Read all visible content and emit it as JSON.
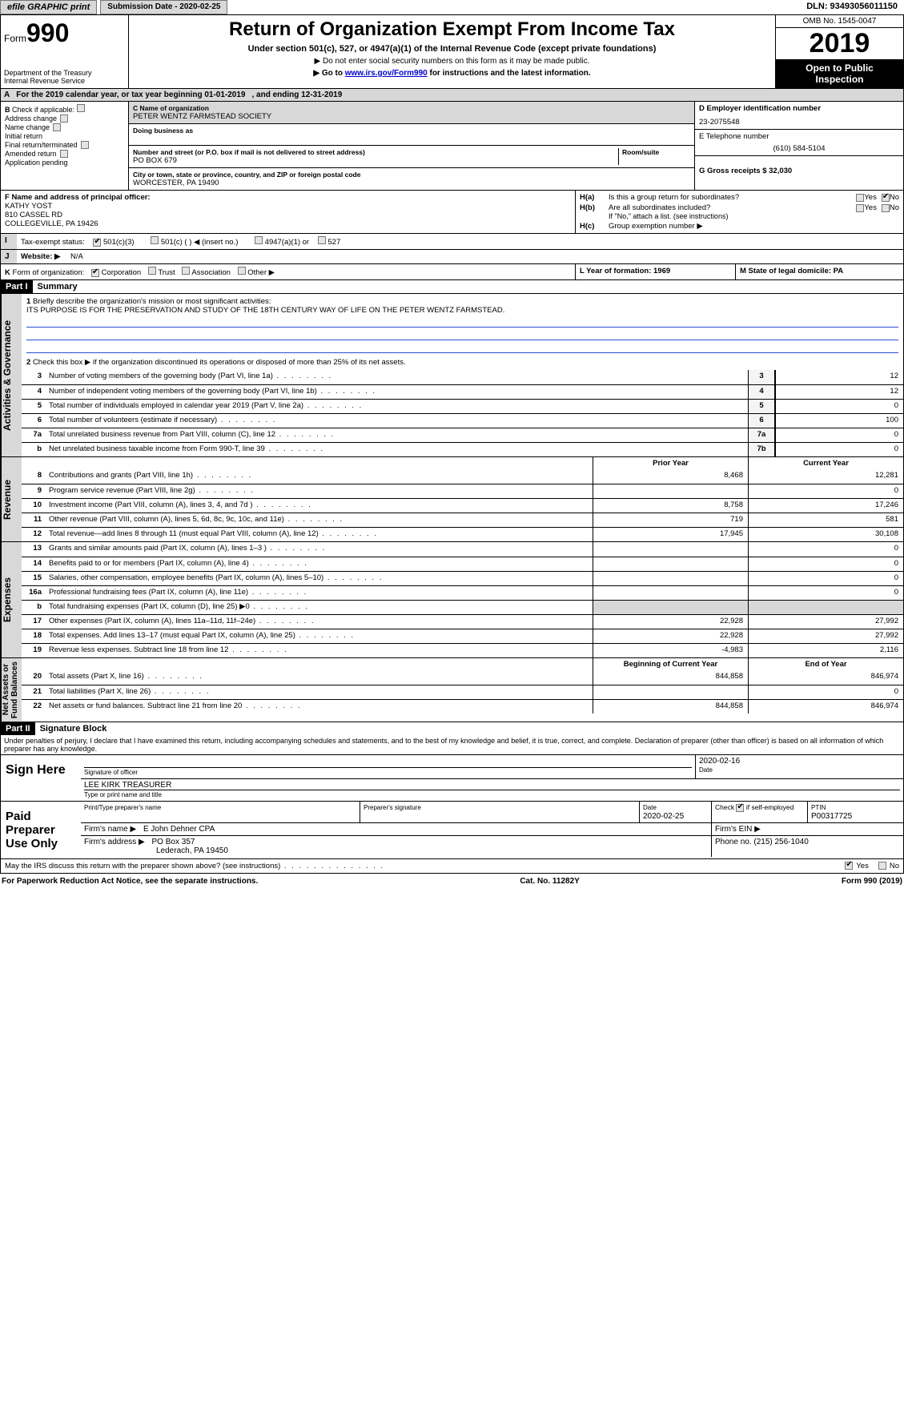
{
  "topbar": {
    "efile": "efile GRAPHIC print",
    "submission": "Submission Date - 2020-02-25",
    "dln": "DLN: 93493056011150"
  },
  "header": {
    "form_label": "Form",
    "form_number": "990",
    "title": "Return of Organization Exempt From Income Tax",
    "subtitle": "Under section 501(c), 527, or 4947(a)(1) of the Internal Revenue Code (except private foundations)",
    "note1": "▶ Do not enter social security numbers on this form as it may be made public.",
    "note2_pre": "▶ Go to ",
    "note2_link": "www.irs.gov/Form990",
    "note2_post": " for instructions and the latest information.",
    "dept": "Department of the Treasury\nInternal Revenue Service",
    "omb": "OMB No. 1545-0047",
    "year": "2019",
    "open": "Open to Public\nInspection"
  },
  "line_a": {
    "label": "A",
    "text": "For the 2019 calendar year, or tax year beginning 01-01-2019",
    "ending": ", and ending 12-31-2019"
  },
  "col_b": {
    "label": "B",
    "check": "Check if applicable:",
    "opts": [
      "Address change",
      "Name change",
      "Initial return",
      "Final return/terminated",
      "Amended return",
      "Application pending"
    ]
  },
  "col_c": {
    "name_lbl": "C Name of organization",
    "name": "PETER WENTZ FARMSTEAD SOCIETY",
    "dba_lbl": "Doing business as",
    "addr_lbl": "Number and street (or P.O. box if mail is not delivered to street address)",
    "room_lbl": "Room/suite",
    "addr": "PO BOX 679",
    "city_lbl": "City or town, state or province, country, and ZIP or foreign postal code",
    "city": "WORCESTER, PA  19490"
  },
  "col_d": {
    "ein_lbl": "D Employer identification number",
    "ein": "23-2075548",
    "tel_lbl": "E Telephone number",
    "tel": "(610) 584-5104",
    "gross_lbl": "G Gross receipts $ 32,030"
  },
  "row_f": {
    "lbl": "F  Name and address of principal officer:",
    "name": "KATHY YOST",
    "street": "810 CASSEL RD",
    "city": "COLLEGEVILLE, PA  19426",
    "ha": "H(a)",
    "ha_text": "Is this a group return for subordinates?",
    "hb": "H(b)",
    "hb_text": "Are all subordinates included?",
    "hb_note": "If \"No,\" attach a list. (see instructions)",
    "hc": "H(c)",
    "hc_text": "Group exemption number ▶",
    "yes": "Yes",
    "no": "No"
  },
  "row_i": {
    "lbl": "I",
    "text": "Tax-exempt status:",
    "opts": [
      "501(c)(3)",
      "501(c) (  ) ◀ (insert no.)",
      "4947(a)(1) or",
      "527"
    ]
  },
  "row_j": {
    "lbl": "J",
    "text": "Website: ▶",
    "val": "N/A"
  },
  "row_k": {
    "lbl": "K",
    "text": "Form of organization:",
    "opts": [
      "Corporation",
      "Trust",
      "Association",
      "Other ▶"
    ],
    "l_lbl": "L Year of formation: 1969",
    "m_lbl": "M State of legal domicile: PA"
  },
  "part1": {
    "tag": "Part I",
    "title": "Summary"
  },
  "vtabs": {
    "gov": "Activities & Governance",
    "rev": "Revenue",
    "exp": "Expenses",
    "net": "Net Assets or\nFund Balances"
  },
  "summary": {
    "l1_lbl": "1",
    "l1": "Briefly describe the organization's mission or most significant activities:",
    "l1_text": "ITS PURPOSE IS FOR THE PRESERVATION AND STUDY OF THE 18TH CENTURY WAY OF LIFE ON THE PETER WENTZ FARMSTEAD.",
    "l2_lbl": "2",
    "l2": "Check this box ▶  if the organization discontinued its operations or disposed of more than 25% of its net assets.",
    "rows": [
      {
        "n": "3",
        "d": "Number of voting members of the governing body (Part VI, line 1a)",
        "b": "3",
        "v": "12"
      },
      {
        "n": "4",
        "d": "Number of independent voting members of the governing body (Part VI, line 1b)",
        "b": "4",
        "v": "12"
      },
      {
        "n": "5",
        "d": "Total number of individuals employed in calendar year 2019 (Part V, line 2a)",
        "b": "5",
        "v": "0"
      },
      {
        "n": "6",
        "d": "Total number of volunteers (estimate if necessary)",
        "b": "6",
        "v": "100"
      },
      {
        "n": "7a",
        "d": "Total unrelated business revenue from Part VIII, column (C), line 12",
        "b": "7a",
        "v": "0"
      },
      {
        "n": "b",
        "d": "Net unrelated business taxable income from Form 990-T, line 39",
        "b": "7b",
        "v": "0"
      }
    ],
    "col_prior": "Prior Year",
    "col_current": "Current Year",
    "rev_rows": [
      {
        "n": "8",
        "d": "Contributions and grants (Part VIII, line 1h)",
        "p": "8,468",
        "c": "12,281"
      },
      {
        "n": "9",
        "d": "Program service revenue (Part VIII, line 2g)",
        "p": "",
        "c": "0"
      },
      {
        "n": "10",
        "d": "Investment income (Part VIII, column (A), lines 3, 4, and 7d )",
        "p": "8,758",
        "c": "17,246"
      },
      {
        "n": "11",
        "d": "Other revenue (Part VIII, column (A), lines 5, 6d, 8c, 9c, 10c, and 11e)",
        "p": "719",
        "c": "581"
      },
      {
        "n": "12",
        "d": "Total revenue—add lines 8 through 11 (must equal Part VIII, column (A), line 12)",
        "p": "17,945",
        "c": "30,108"
      }
    ],
    "exp_rows": [
      {
        "n": "13",
        "d": "Grants and similar amounts paid (Part IX, column (A), lines 1–3 )",
        "p": "",
        "c": "0"
      },
      {
        "n": "14",
        "d": "Benefits paid to or for members (Part IX, column (A), line 4)",
        "p": "",
        "c": "0"
      },
      {
        "n": "15",
        "d": "Salaries, other compensation, employee benefits (Part IX, column (A), lines 5–10)",
        "p": "",
        "c": "0"
      },
      {
        "n": "16a",
        "d": "Professional fundraising fees (Part IX, column (A), line 11e)",
        "p": "",
        "c": "0"
      },
      {
        "n": "b",
        "d": "Total fundraising expenses (Part IX, column (D), line 25) ▶0",
        "p": "shade",
        "c": "shade"
      },
      {
        "n": "17",
        "d": "Other expenses (Part IX, column (A), lines 11a–11d, 11f–24e)",
        "p": "22,928",
        "c": "27,992"
      },
      {
        "n": "18",
        "d": "Total expenses. Add lines 13–17 (must equal Part IX, column (A), line 25)",
        "p": "22,928",
        "c": "27,992"
      },
      {
        "n": "19",
        "d": "Revenue less expenses. Subtract line 18 from line 12",
        "p": "-4,983",
        "c": "2,116"
      }
    ],
    "col_beg": "Beginning of Current Year",
    "col_end": "End of Year",
    "net_rows": [
      {
        "n": "20",
        "d": "Total assets (Part X, line 16)",
        "p": "844,858",
        "c": "846,974"
      },
      {
        "n": "21",
        "d": "Total liabilities (Part X, line 26)",
        "p": "",
        "c": "0"
      },
      {
        "n": "22",
        "d": "Net assets or fund balances. Subtract line 21 from line 20",
        "p": "844,858",
        "c": "846,974"
      }
    ]
  },
  "part2": {
    "tag": "Part II",
    "title": "Signature Block"
  },
  "perjury": "Under penalties of perjury, I declare that I have examined this return, including accompanying schedules and statements, and to the best of my knowledge and belief, it is true, correct, and complete. Declaration of preparer (other than officer) is based on all information of which preparer has any knowledge.",
  "sign": {
    "here": "Sign Here",
    "sig_officer": "Signature of officer",
    "date": "Date",
    "date_val": "2020-02-16",
    "type_name": "LEE KIRK  TREASURER",
    "type_lbl": "Type or print name and title"
  },
  "paid": {
    "title": "Paid Preparer Use Only",
    "col_name": "Print/Type preparer's name",
    "col_sig": "Preparer's signature",
    "col_date": "Date",
    "date_val": "2020-02-25",
    "check_lbl": "Check         if self-employed",
    "ptin_lbl": "PTIN",
    "ptin": "P00317725",
    "firm_name_lbl": "Firm's name    ▶",
    "firm_name": "E John Dehner CPA",
    "firm_ein_lbl": "Firm's EIN ▶",
    "firm_addr_lbl": "Firm's address ▶",
    "firm_addr": "PO Box 357",
    "firm_addr2": "Lederach, PA  19450",
    "phone_lbl": "Phone no. (215) 256-1040"
  },
  "footer": {
    "discuss": "May the IRS discuss this return with the preparer shown above? (see instructions)",
    "yes": "Yes",
    "no": "No",
    "pra": "For Paperwork Reduction Act Notice, see the separate instructions.",
    "cat": "Cat. No. 11282Y",
    "form": "Form 990 (2019)"
  }
}
